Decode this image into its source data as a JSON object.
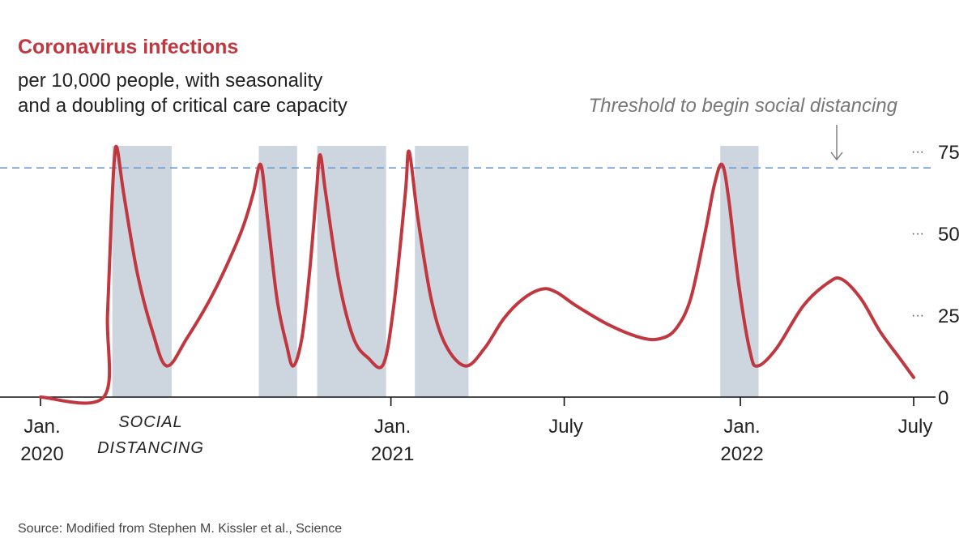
{
  "chart_data": {
    "type": "line",
    "title": "Coronavirus infections",
    "subtitle_lines": [
      "per 10,000 people, with seasonality",
      "and a doubling of critical care capacity"
    ],
    "xlabel": "",
    "ylabel": "",
    "ylim": [
      0,
      75
    ],
    "y_ticks": [
      0,
      25,
      50,
      75
    ],
    "x_range": [
      "2020-01-01",
      "2022-07-01"
    ],
    "x_ticks": [
      {
        "date": "2020-01-01",
        "label": [
          "Jan.",
          "2020"
        ]
      },
      {
        "date": "2021-01-01",
        "label": [
          "Jan.",
          "2021"
        ]
      },
      {
        "date": "2021-07-01",
        "label": [
          "July",
          ""
        ]
      },
      {
        "date": "2022-01-01",
        "label": [
          "Jan.",
          "2022"
        ]
      },
      {
        "date": "2022-07-01",
        "label": [
          "July",
          ""
        ]
      }
    ],
    "threshold": {
      "value": 70,
      "label": "Threshold to begin social distancing",
      "color": "#6b9bd1"
    },
    "social_distancing": {
      "label": [
        "SOCIAL",
        "DISTANCING"
      ],
      "color": "#cdd6df",
      "periods": [
        [
          "2020-03-16",
          "2020-05-17"
        ],
        [
          "2020-08-16",
          "2020-09-25"
        ],
        [
          "2020-10-16",
          "2020-12-27"
        ],
        [
          "2021-01-26",
          "2021-03-23"
        ],
        [
          "2021-12-11",
          "2022-01-20"
        ]
      ]
    },
    "series": [
      {
        "color": "#c0373f",
        "points": [
          [
            "2020-01-01",
            0
          ],
          [
            "2020-03-07",
            0
          ],
          [
            "2020-03-11",
            25
          ],
          [
            "2020-03-15",
            55
          ],
          [
            "2020-03-18",
            72
          ],
          [
            "2020-03-21",
            76
          ],
          [
            "2020-03-28",
            62
          ],
          [
            "2020-04-11",
            38
          ],
          [
            "2020-04-27",
            20
          ],
          [
            "2020-05-12",
            9.5
          ],
          [
            "2020-06-02",
            18
          ],
          [
            "2020-06-30",
            32
          ],
          [
            "2020-07-28",
            50
          ],
          [
            "2020-08-10",
            62
          ],
          [
            "2020-08-18",
            71
          ],
          [
            "2020-08-25",
            55
          ],
          [
            "2020-09-04",
            30
          ],
          [
            "2020-09-14",
            16
          ],
          [
            "2020-09-21",
            9.5
          ],
          [
            "2020-09-30",
            18
          ],
          [
            "2020-10-08",
            38
          ],
          [
            "2020-10-15",
            62
          ],
          [
            "2020-10-19",
            74
          ],
          [
            "2020-10-25",
            62
          ],
          [
            "2020-11-08",
            35
          ],
          [
            "2020-11-23",
            18
          ],
          [
            "2020-12-08",
            12
          ],
          [
            "2020-12-24",
            10
          ],
          [
            "2021-01-04",
            28
          ],
          [
            "2021-01-16",
            62
          ],
          [
            "2021-01-20",
            75
          ],
          [
            "2021-01-29",
            55
          ],
          [
            "2021-02-12",
            30
          ],
          [
            "2021-02-27",
            16
          ],
          [
            "2021-03-20",
            9.5
          ],
          [
            "2021-04-09",
            15
          ],
          [
            "2021-04-29",
            24
          ],
          [
            "2021-05-19",
            30
          ],
          [
            "2021-06-08",
            33
          ],
          [
            "2021-06-23",
            32
          ],
          [
            "2021-07-13",
            28
          ],
          [
            "2021-08-17",
            22
          ],
          [
            "2021-09-21",
            18
          ],
          [
            "2021-10-11",
            18
          ],
          [
            "2021-10-26",
            21
          ],
          [
            "2021-11-10",
            30
          ],
          [
            "2021-11-25",
            50
          ],
          [
            "2021-12-05",
            65
          ],
          [
            "2021-12-13",
            71
          ],
          [
            "2021-12-20",
            60
          ],
          [
            "2021-12-30",
            35
          ],
          [
            "2022-01-11",
            14
          ],
          [
            "2022-01-19",
            9.5
          ],
          [
            "2022-02-08",
            15
          ],
          [
            "2022-03-08",
            28
          ],
          [
            "2022-04-03",
            35
          ],
          [
            "2022-04-17",
            36
          ],
          [
            "2022-05-07",
            30
          ],
          [
            "2022-05-27",
            20
          ],
          [
            "2022-06-16",
            12
          ],
          [
            "2022-07-01",
            6
          ]
        ]
      }
    ],
    "source": "Source: Modified from Stephen M. Kissler et al., Science"
  }
}
